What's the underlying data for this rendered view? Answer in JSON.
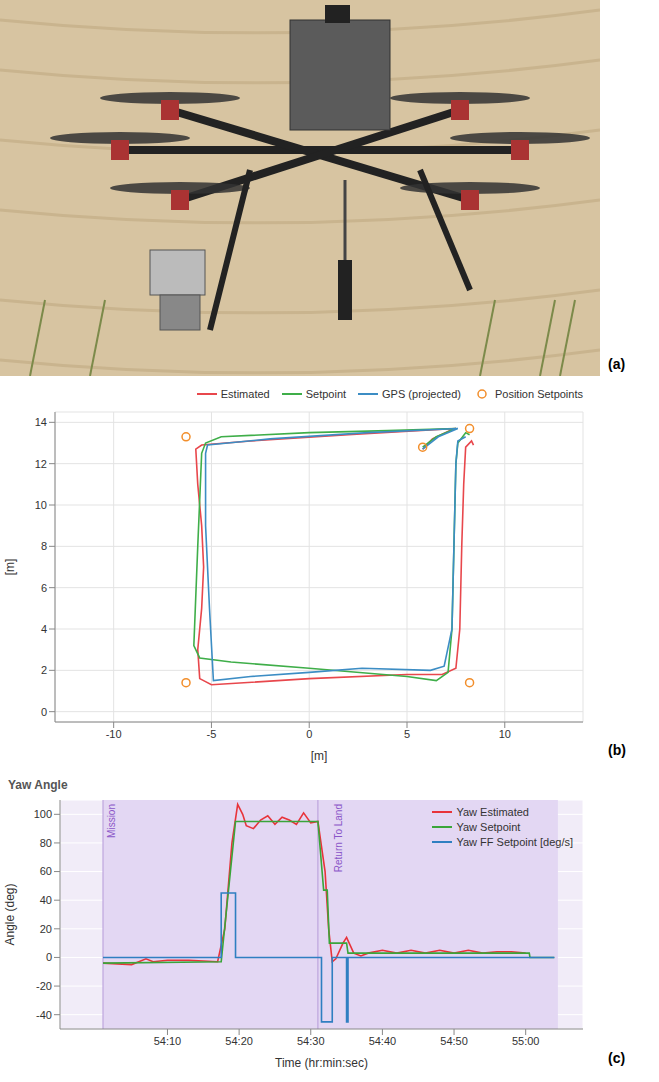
{
  "photo": {
    "label": "(a)"
  },
  "chart_data": [
    {
      "label": "(b)",
      "type": "line",
      "x_label": "[m]",
      "y_label": "[m]",
      "xlim": [
        -13,
        14
      ],
      "xticks": [
        -10,
        -5,
        0,
        5,
        10
      ],
      "ylim": [
        -0.5,
        14.5
      ],
      "yticks": [
        0,
        2,
        4,
        6,
        8,
        10,
        12,
        14
      ],
      "grid": true,
      "legend": "top",
      "series": [
        {
          "name": "Estimated",
          "color": "#e8474c",
          "type": "line",
          "x": [
            5.8,
            6.3,
            7.2,
            7.5,
            2,
            -3,
            -5.5,
            -5.8,
            -5.7,
            -5.5,
            -5.4,
            -5.5,
            -5.7,
            -5.6,
            -5.0,
            0,
            5,
            6.8,
            7.5,
            7.7,
            7.8,
            7.9,
            8.0,
            8.3,
            8.4
          ],
          "y": [
            12.7,
            13.2,
            13.6,
            13.7,
            13.4,
            13.1,
            12.9,
            12.7,
            11,
            9,
            7,
            5,
            3,
            1.6,
            1.3,
            1.6,
            1.8,
            1.8,
            2.1,
            4,
            8,
            11,
            12.8,
            13.1,
            12.9
          ]
        },
        {
          "name": "Setpoint",
          "color": "#3fae49",
          "type": "line",
          "x": [
            5.8,
            6.5,
            7.5,
            4,
            0,
            -4.5,
            -5.3,
            -5.5,
            -5.7,
            -5.9,
            -5.6,
            -4,
            0,
            5,
            6.5,
            7.1,
            7.3,
            7.4,
            7.5,
            7.6,
            8.0,
            8.2
          ],
          "y": [
            12.8,
            13.3,
            13.7,
            13.6,
            13.5,
            13.3,
            13.0,
            12.5,
            8,
            3.2,
            2.6,
            2.4,
            2.1,
            1.7,
            1.5,
            1.9,
            4,
            8,
            12,
            13.0,
            13.5,
            13.4
          ]
        },
        {
          "name": "GPS (projected)",
          "color": "#3c8dc4",
          "type": "line",
          "x": [
            5.8,
            6.6,
            7.6,
            3,
            -2,
            -5.2,
            -5.3,
            -5.3,
            -5.1,
            -4.9,
            -3,
            0,
            2.7,
            6.2,
            6.9,
            7.3,
            7.4,
            7.5,
            7.6,
            8.0
          ],
          "y": [
            12.7,
            13.3,
            13.7,
            13.5,
            13.2,
            12.9,
            12.5,
            9,
            5,
            1.5,
            1.7,
            1.9,
            2.1,
            2.0,
            2.2,
            4.0,
            8,
            12,
            13.1,
            13.3
          ]
        },
        {
          "name": "Position Setpoints",
          "color": "#f28e2b",
          "type": "scatter",
          "marker": "open_circle",
          "x": [
            -6.3,
            8.2,
            5.8,
            -6.3,
            8.2
          ],
          "y": [
            13.3,
            13.7,
            12.8,
            1.4,
            1.4
          ]
        }
      ]
    },
    {
      "label": "(c)",
      "type": "line",
      "title": "Yaw Angle",
      "x_label": "Time (hr:min:sec)",
      "y_label": "Angle (deg)",
      "xlim": [
        3235,
        3308
      ],
      "xticks": [
        {
          "value": 3250,
          "label": "54:10"
        },
        {
          "value": 3260,
          "label": "54:20"
        },
        {
          "value": 3270,
          "label": "54:30"
        },
        {
          "value": 3280,
          "label": "54:40"
        },
        {
          "value": 3290,
          "label": "54:50"
        },
        {
          "value": 3300,
          "label": "55:00"
        }
      ],
      "ylim": [
        -50,
        110
      ],
      "yticks": [
        -40,
        -20,
        0,
        20,
        40,
        60,
        80,
        100
      ],
      "grid": true,
      "legend": "upper right",
      "shaded_range": [
        3241,
        3304.5
      ],
      "annotations": [
        {
          "text": "Mission",
          "x": 3241
        },
        {
          "text": "Return To Land",
          "x": 3271
        }
      ],
      "series": [
        {
          "name": "Yaw Estimated",
          "color": "#e8333a",
          "type": "line",
          "x": [
            3241,
            3245,
            3246,
            3247,
            3248,
            3250,
            3253,
            3257,
            3258,
            3259,
            3259.8,
            3260.5,
            3261,
            3262,
            3263,
            3264,
            3265,
            3266,
            3267,
            3268,
            3269,
            3270,
            3271,
            3272,
            3272.5,
            3273,
            3273.5,
            3274.5,
            3275,
            3276,
            3277,
            3278,
            3280,
            3282,
            3284,
            3286,
            3288,
            3290,
            3292,
            3294,
            3296,
            3298,
            3300
          ],
          "y": [
            -4,
            -5,
            -3,
            -1,
            -3,
            -2,
            -2,
            -3,
            20,
            80,
            107,
            100,
            92,
            90,
            96,
            99,
            93,
            98,
            96,
            93,
            101,
            94,
            95,
            60,
            20,
            -3,
            -1,
            10,
            14,
            3,
            1,
            3,
            5,
            3,
            5,
            3,
            5,
            3,
            5,
            3,
            4,
            4,
            3
          ]
        },
        {
          "name": "Yaw Setpoint",
          "color": "#3aa53a",
          "type": "line",
          "x": [
            3241,
            3257.5,
            3259.5,
            3271,
            3271.8,
            3272.3,
            3272.6,
            3275,
            3275.2,
            3300.5,
            3300.6,
            3304
          ],
          "y": [
            -4,
            -3,
            95,
            95,
            47,
            47,
            10,
            10,
            3,
            3,
            0,
            0
          ]
        },
        {
          "name": "Yaw FF Setpoint [deg/s]",
          "color": "#2f7fc1",
          "type": "line",
          "x": [
            3241,
            3257.5,
            3257.5,
            3259.5,
            3259.5,
            3271.5,
            3271.5,
            3273,
            3273,
            3275,
            3275,
            3275.2,
            3275.2,
            3304
          ],
          "y": [
            0,
            0,
            45,
            45,
            0,
            0,
            -45,
            -45,
            0,
            0,
            -45,
            -45,
            0,
            0
          ]
        }
      ]
    }
  ]
}
